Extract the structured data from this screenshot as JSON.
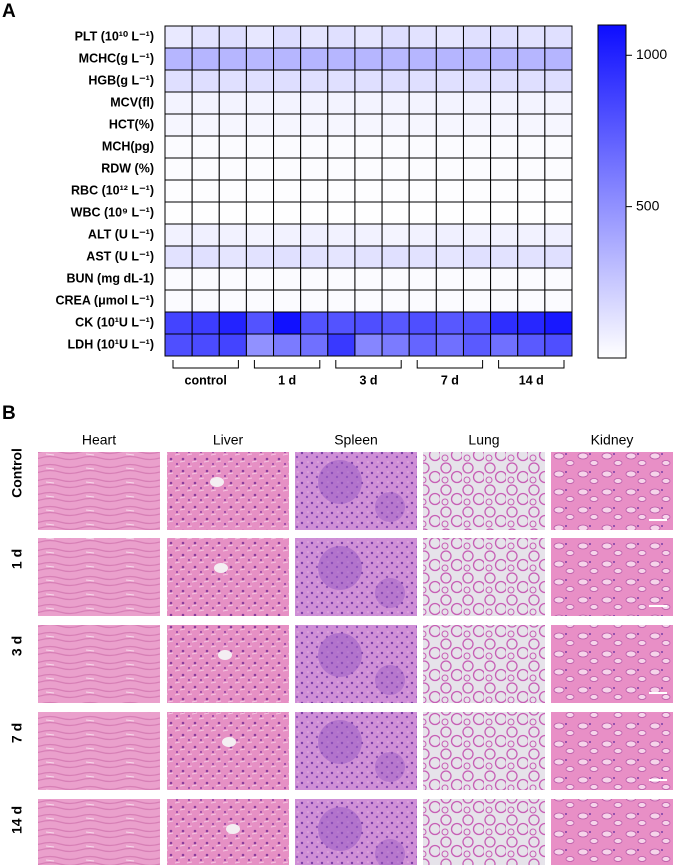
{
  "panel_labels": [
    "A",
    "B"
  ],
  "chart_data": {
    "type": "heatmap",
    "rows": [
      "PLT (10¹⁰ L⁻¹)",
      "MCHC(g L⁻¹)",
      "HGB(g L⁻¹)",
      "MCV(fl)",
      "HCT(%)",
      "MCH(pg)",
      "RDW (%)",
      "RBC (10¹² L⁻¹)",
      "WBC (10⁹ L⁻¹)",
      "ALT (U L⁻¹)",
      "AST (U L⁻¹)",
      "BUN (mg dL-1)",
      "CREA (μmol L⁻¹)",
      "CK (10¹U L⁻¹)",
      "LDH (10¹U L⁻¹)"
    ],
    "x_groups": [
      "control",
      "1 d",
      "3 d",
      "7 d",
      "14 d"
    ],
    "z": [
      [
        100,
        130,
        150,
        110,
        160,
        120,
        140,
        120,
        150,
        130,
        120,
        140,
        150,
        130,
        140
      ],
      [
        330,
        335,
        330,
        325,
        330,
        335,
        330,
        330,
        325,
        330,
        335,
        330,
        330,
        330,
        335
      ],
      [
        145,
        150,
        140,
        145,
        150,
        145,
        140,
        145,
        150,
        145,
        140,
        150,
        145,
        145,
        150
      ],
      [
        55,
        55,
        55,
        55,
        55,
        55,
        55,
        55,
        55,
        55,
        55,
        55,
        55,
        55,
        55
      ],
      [
        40,
        40,
        40,
        40,
        40,
        40,
        40,
        40,
        40,
        40,
        40,
        40,
        40,
        40,
        40
      ],
      [
        16,
        16,
        16,
        16,
        16,
        16,
        16,
        16,
        16,
        16,
        16,
        16,
        16,
        16,
        16
      ],
      [
        14,
        14,
        14,
        14,
        14,
        14,
        14,
        14,
        14,
        14,
        14,
        14,
        14,
        14,
        14
      ],
      [
        8,
        8,
        8,
        8,
        8,
        8,
        8,
        8,
        8,
        8,
        8,
        8,
        8,
        8,
        8
      ],
      [
        5,
        5,
        5,
        5,
        5,
        5,
        5,
        5,
        5,
        5,
        5,
        5,
        5,
        5,
        5
      ],
      [
        60,
        70,
        60,
        50,
        60,
        70,
        60,
        60,
        50,
        60,
        70,
        60,
        60,
        60,
        70
      ],
      [
        130,
        140,
        120,
        130,
        140,
        130,
        120,
        130,
        140,
        130,
        120,
        140,
        130,
        130,
        140
      ],
      [
        20,
        20,
        20,
        20,
        20,
        20,
        20,
        20,
        20,
        20,
        20,
        20,
        20,
        20,
        20
      ],
      [
        20,
        20,
        20,
        20,
        20,
        20,
        20,
        20,
        20,
        20,
        20,
        20,
        20,
        20,
        20
      ],
      [
        850,
        880,
        1000,
        780,
        1080,
        780,
        780,
        800,
        760,
        800,
        760,
        790,
        950,
        980,
        1050
      ],
      [
        800,
        820,
        850,
        500,
        600,
        650,
        900,
        550,
        600,
        700,
        650,
        750,
        650,
        750,
        800
      ]
    ],
    "zlim": [
      0,
      1100
    ],
    "colorscale": [
      "#ffffff",
      "#0d0dff"
    ],
    "colorbar_ticks": [
      500,
      1000
    ]
  },
  "histology": {
    "columns": [
      "Heart",
      "Liver",
      "Spleen",
      "Lung",
      "Kidney"
    ],
    "rows": [
      "Control",
      "1 d",
      "3 d",
      "7 d",
      "14 d"
    ]
  }
}
